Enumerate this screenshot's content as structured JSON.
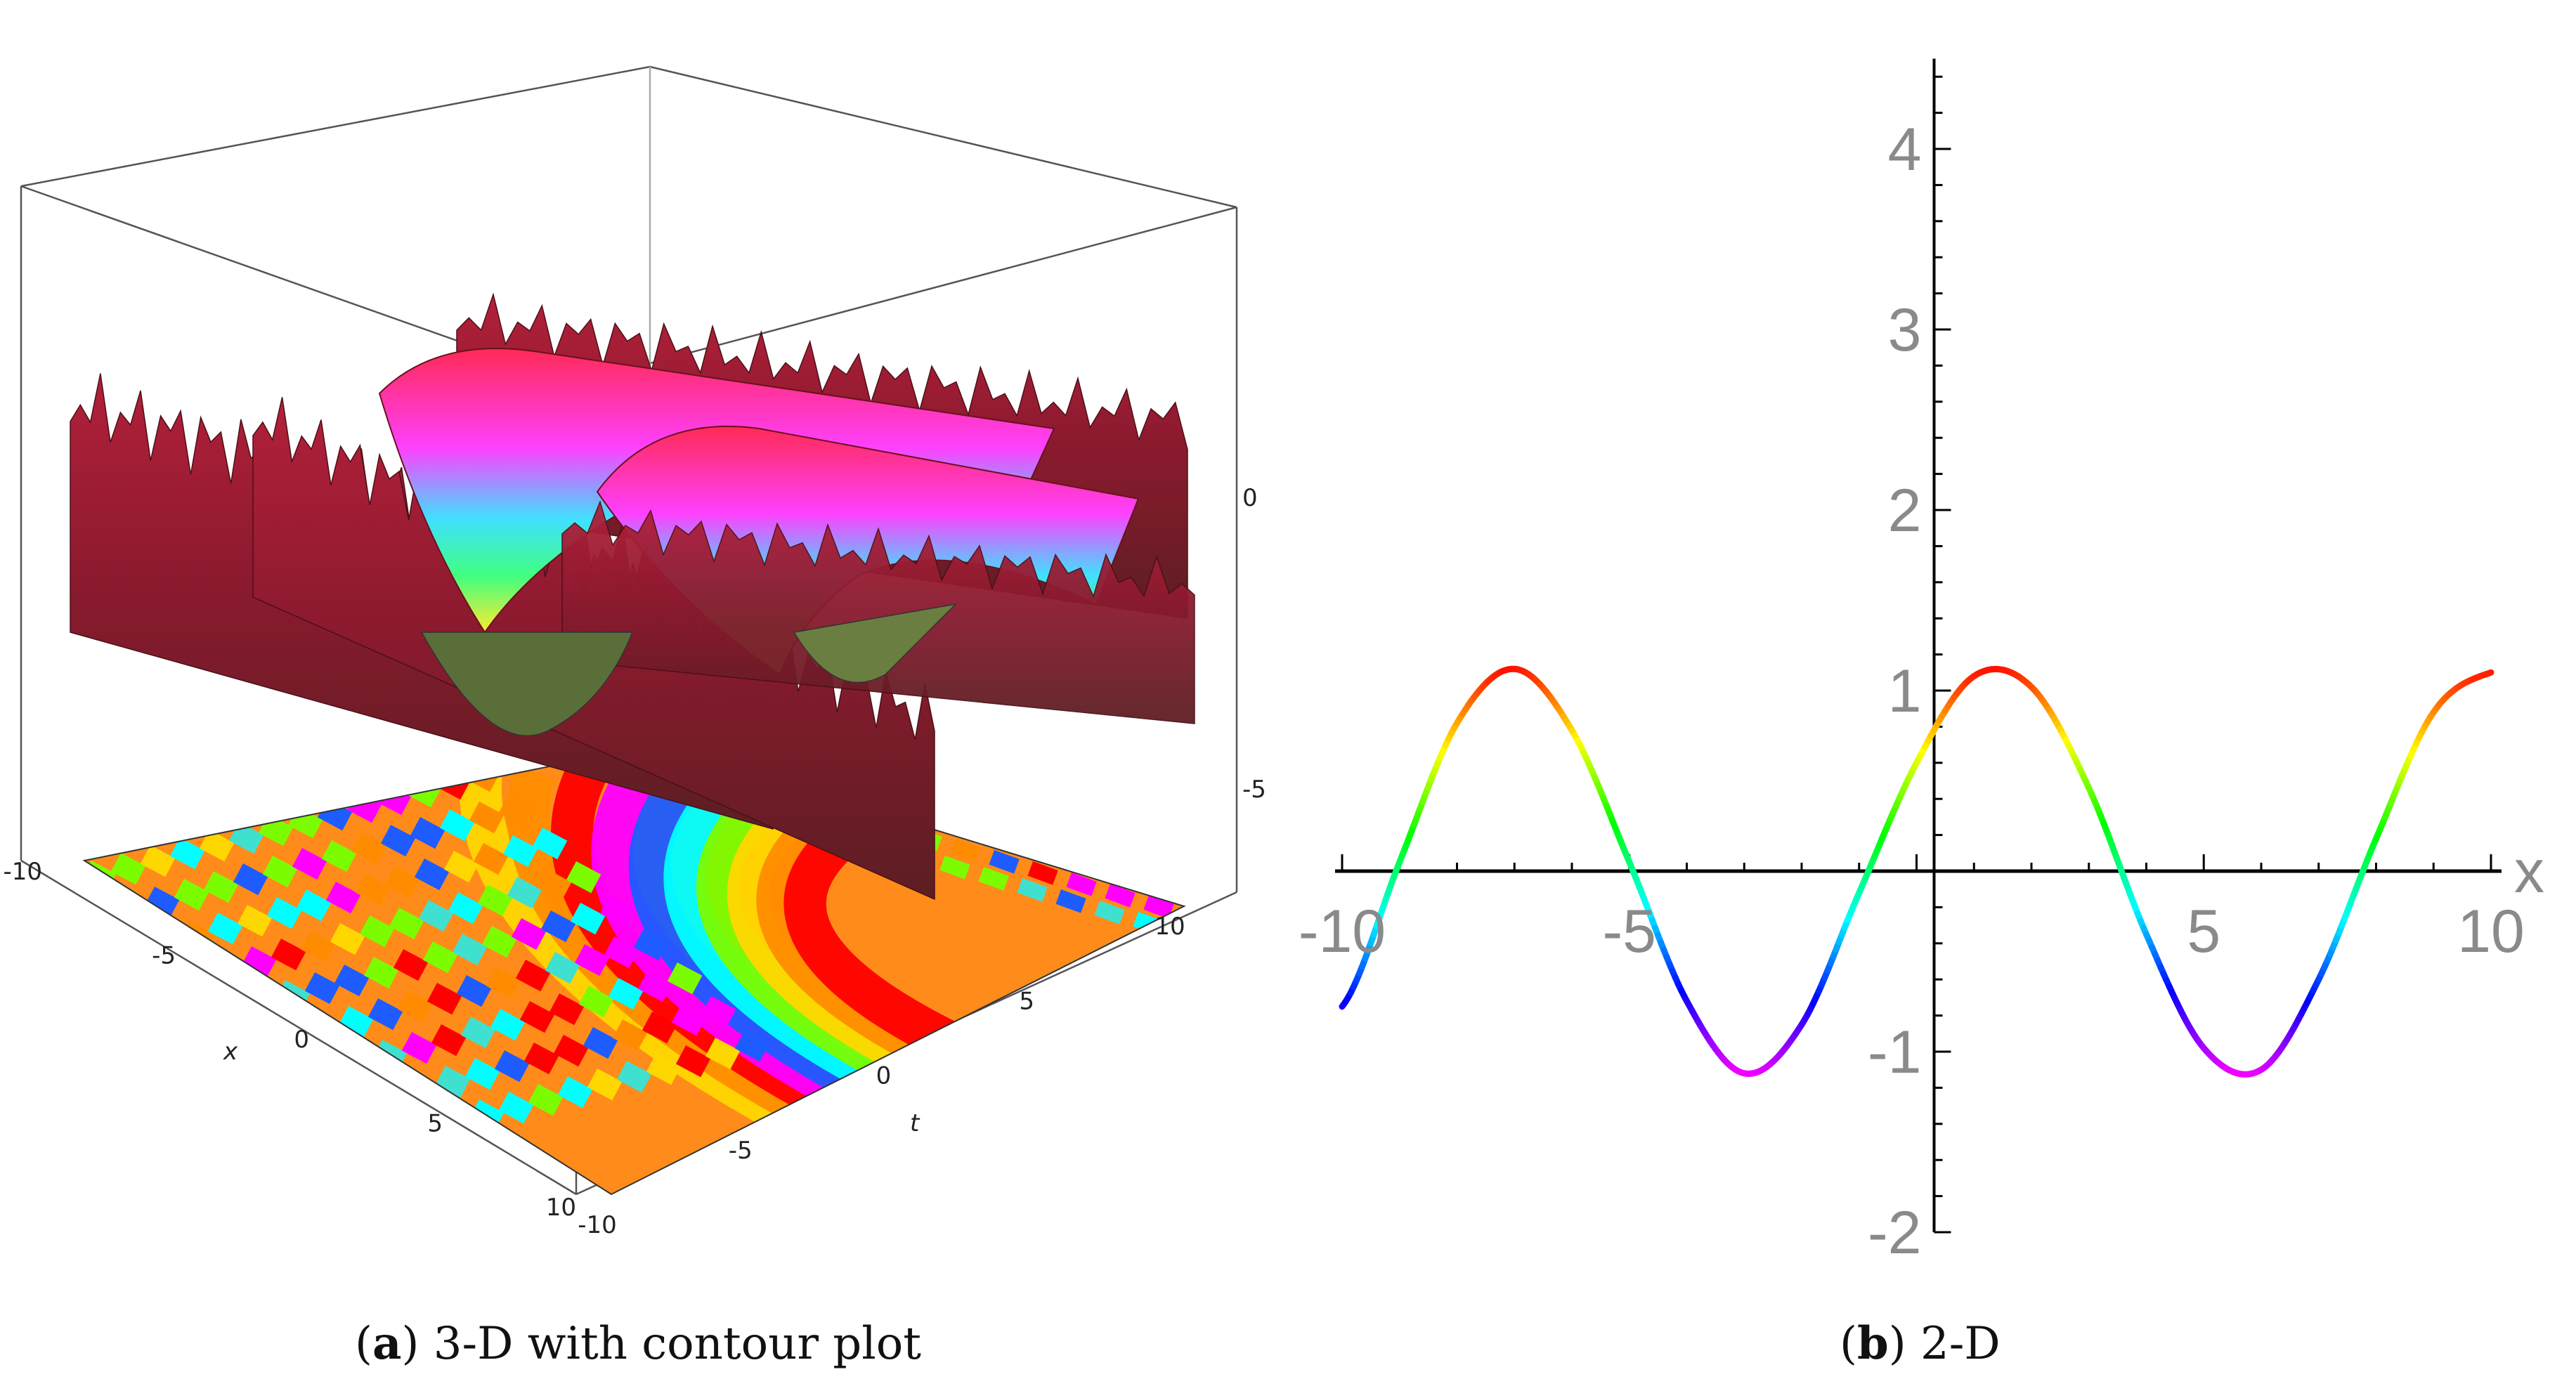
{
  "captions": {
    "a": {
      "letter": "a",
      "text": "3-D with contour plot"
    },
    "b": {
      "letter": "b",
      "text": "2-D"
    }
  },
  "chart_data": [
    {
      "type": "surface3d-with-contour",
      "panel": "a",
      "x_axis": {
        "label": "x",
        "range": [
          -10,
          10
        ],
        "ticks": [
          "-10",
          "-5",
          "0",
          "5",
          "10"
        ]
      },
      "t_axis": {
        "label": "t",
        "range": [
          -10,
          10
        ],
        "ticks": [
          "-10",
          "-5",
          "0",
          "5",
          "10"
        ]
      },
      "z_axis": {
        "ticks": [
          "0",
          "-5"
        ]
      },
      "colormap": "rainbow (red/magenta/blue/cyan/green/yellow/orange)",
      "grid": false
    },
    {
      "type": "line",
      "panel": "b",
      "xlabel": "x",
      "xlim": [
        -10,
        10
      ],
      "ylim": [
        -2,
        4.5
      ],
      "xticks": [
        "-10",
        "-5",
        "5",
        "10"
      ],
      "yticks": [
        "-2",
        "-1",
        "1",
        "2",
        "3",
        "4"
      ],
      "series": [
        {
          "x": [
            -10,
            -9,
            -8,
            -7,
            -6,
            -5,
            -4,
            -3,
            -2,
            -1,
            0,
            1,
            2,
            3,
            4,
            5,
            6,
            7,
            8,
            9,
            10
          ],
          "y": [
            -0.75,
            0.05,
            0.82,
            1.12,
            0.78,
            0.05,
            -0.72,
            -1.12,
            -0.85,
            -0.12,
            0.6,
            1.08,
            1.02,
            0.46,
            -0.35,
            -0.98,
            -1.1,
            -0.6,
            0.18,
            0.88,
            1.1
          ],
          "colormap": "rainbow"
        }
      ]
    }
  ]
}
